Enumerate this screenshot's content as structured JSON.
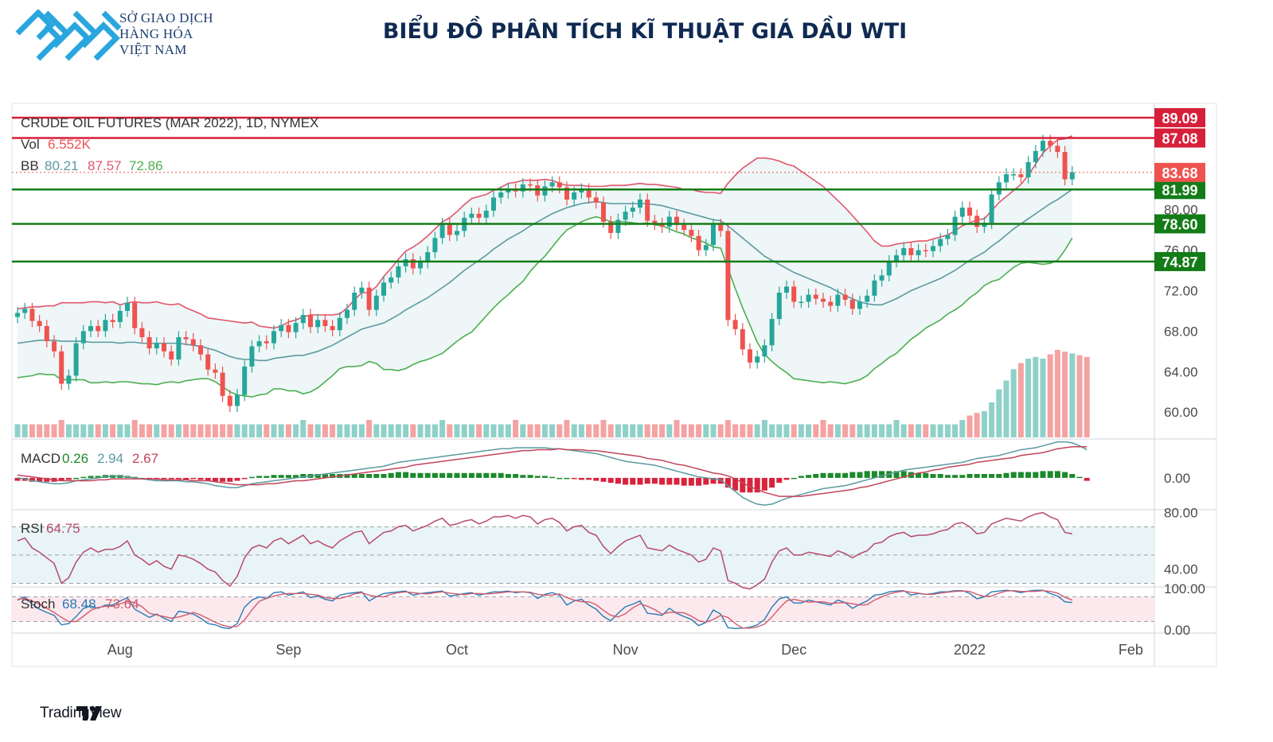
{
  "header": {
    "logo_lines": [
      "SỞ GIAO DỊCH",
      "HÀNG HÓA",
      "VIỆT NAM"
    ],
    "title": "BIỂU ĐỒ PHÂN TÍCH KĨ THUẬT GIÁ DẦU WTI"
  },
  "footer": {
    "brand": "TradingView"
  },
  "colors": {
    "up": "#26a69a",
    "down": "#ef5350",
    "bb_upper": "#e0566b",
    "bb_basis": "#5b9aa0",
    "bb_lower": "#4caf50",
    "resistance": "#d6203a",
    "support": "#137c17",
    "band_fill": "#eef6f7"
  },
  "chart_data": {
    "type": "candlestick",
    "symbol_label": "CRUDE OIL FUTURES (MAR 2022), 1D, NYMEX",
    "currency": "USD",
    "volume_label": "Vol",
    "volume_value": "6.552K",
    "bb_label": "BB",
    "bb_values": [
      "80.21",
      "87.57",
      "72.86"
    ],
    "macd_label": "MACD",
    "macd_values": [
      "0.26",
      "2.94",
      "2.67"
    ],
    "rsi_label": "RSI",
    "rsi_value": "64.75",
    "stoch_label": "Stoch",
    "stoch_values": [
      "68.48",
      "73.64"
    ],
    "price_axis_ticks": [
      "80.00",
      "76.00",
      "72.00",
      "68.00",
      "64.00",
      "60.00"
    ],
    "price_range": [
      57.5,
      90.5
    ],
    "macd_axis_ticks": [
      "0.00"
    ],
    "rsi_axis_ticks": [
      "80.00",
      "40.00"
    ],
    "stoch_axis_ticks": [
      "100.00",
      "0.00"
    ],
    "x_labels": [
      "Aug",
      "Sep",
      "Oct",
      "Nov",
      "Dec",
      "2022",
      "Feb"
    ],
    "x_label_day_index": [
      14,
      37,
      60,
      83,
      106,
      130,
      152
    ],
    "levels": [
      {
        "value": 89.09,
        "label": "89.09",
        "kind": "resistance"
      },
      {
        "value": 87.08,
        "label": "87.08",
        "kind": "resistance"
      },
      {
        "value": 81.99,
        "label": "81.99",
        "kind": "support"
      },
      {
        "value": 78.6,
        "label": "78.60",
        "kind": "support"
      },
      {
        "value": 74.87,
        "label": "74.87",
        "kind": "support"
      }
    ],
    "last_price": {
      "value": 83.68,
      "label": "83.68"
    },
    "closes": [
      69.8,
      70.2,
      69.0,
      68.5,
      67.0,
      66.0,
      62.8,
      63.6,
      66.8,
      68.0,
      68.5,
      68.0,
      69.1,
      68.9,
      70.0,
      70.8,
      68.3,
      67.4,
      66.3,
      66.8,
      66.0,
      65.2,
      67.4,
      67.2,
      66.6,
      65.7,
      64.2,
      63.9,
      61.6,
      60.6,
      61.7,
      64.5,
      66.5,
      67.0,
      66.8,
      68.0,
      68.6,
      67.9,
      68.8,
      69.6,
      68.4,
      69.1,
      68.5,
      68.1,
      69.3,
      70.1,
      71.8,
      72.3,
      70.1,
      71.5,
      72.8,
      73.3,
      74.4,
      75.1,
      74.2,
      74.8,
      75.8,
      77.2,
      78.6,
      77.5,
      77.9,
      79.2,
      79.6,
      79.2,
      79.9,
      81.2,
      81.7,
      82.0,
      81.8,
      82.5,
      82.4,
      81.4,
      82.3,
      82.7,
      82.2,
      81.0,
      81.7,
      82.0,
      81.2,
      80.7,
      78.8,
      77.7,
      79.0,
      79.8,
      80.2,
      81.0,
      78.9,
      78.6,
      78.3,
      79.3,
      78.5,
      78.0,
      77.4,
      76.0,
      76.5,
      78.5,
      77.9,
      69.1,
      68.2,
      66.2,
      64.9,
      65.5,
      66.6,
      69.2,
      71.8,
      72.4,
      70.9,
      70.9,
      71.6,
      71.2,
      70.9,
      70.5,
      71.6,
      71.1,
      70.2,
      70.9,
      71.5,
      73.0,
      73.5,
      74.9,
      75.5,
      76.2,
      75.5,
      76.0,
      75.9,
      76.4,
      77.1,
      77.5,
      79.3,
      80.2,
      79.4,
      78.3,
      78.7,
      81.5,
      82.7,
      83.5,
      83.5,
      83.2,
      84.7,
      85.8,
      86.8,
      86.3,
      85.7,
      83.0,
      83.7
    ],
    "bb_upper": [
      70.2,
      70.3,
      70.4,
      70.4,
      70.5,
      70.5,
      70.8,
      70.8,
      70.8,
      70.8,
      70.9,
      70.9,
      70.8,
      70.9,
      70.6,
      70.8,
      70.9,
      70.8,
      70.8,
      70.9,
      70.7,
      70.6,
      70.7,
      70.3,
      70.0,
      69.7,
      69.3,
      69.2,
      69.1,
      69.0,
      68.9,
      68.8,
      68.9,
      68.5,
      68.4,
      68.3,
      68.5,
      68.9,
      69.1,
      69.4,
      69.6,
      69.6,
      69.6,
      69.6,
      69.7,
      70.3,
      71.1,
      71.8,
      71.8,
      72.4,
      73.4,
      74.2,
      75.1,
      75.9,
      76.3,
      76.8,
      77.4,
      78.1,
      78.8,
      79.2,
      79.8,
      80.5,
      81.1,
      81.3,
      81.5,
      81.9,
      82.2,
      82.6,
      82.7,
      82.9,
      82.9,
      82.9,
      83.0,
      82.9,
      82.6,
      82.4,
      82.4,
      82.4,
      82.3,
      82.3,
      82.3,
      82.4,
      82.4,
      82.4,
      82.5,
      82.6,
      82.5,
      82.5,
      82.4,
      82.3,
      82.2,
      82.0,
      82.0,
      81.8,
      81.7,
      81.7,
      81.6,
      82.6,
      83.4,
      84.1,
      84.6,
      85.1,
      85.1,
      85.0,
      84.8,
      84.5,
      84.3,
      83.8,
      83.3,
      82.8,
      82.3,
      81.6,
      80.9,
      80.2,
      79.4,
      78.6,
      77.8,
      76.9,
      76.4,
      76.4,
      76.6,
      76.7,
      76.8,
      76.9,
      76.9,
      77.1,
      77.3,
      77.5,
      77.9,
      78.4,
      78.7,
      79.0,
      79.1,
      79.9,
      80.7,
      81.3,
      81.9,
      82.5,
      83.4,
      84.5,
      85.6,
      86.3,
      86.9,
      87.0,
      87.3
    ],
    "bb_basis": [
      66.8,
      66.9,
      67.0,
      67.1,
      67.1,
      67.1,
      67.0,
      67.0,
      67.0,
      67.0,
      66.9,
      66.9,
      66.9,
      66.9,
      66.8,
      66.9,
      66.9,
      66.8,
      66.8,
      66.8,
      66.8,
      66.8,
      66.8,
      66.7,
      66.6,
      66.5,
      66.3,
      66.1,
      65.8,
      65.5,
      65.3,
      65.2,
      65.2,
      65.1,
      65.1,
      65.3,
      65.4,
      65.5,
      65.6,
      65.6,
      65.8,
      66.0,
      66.3,
      66.6,
      67.0,
      67.4,
      67.8,
      68.2,
      68.4,
      68.6,
      68.8,
      69.2,
      69.6,
      70.1,
      70.5,
      70.9,
      71.3,
      71.8,
      72.3,
      72.8,
      73.4,
      74.0,
      74.5,
      75.0,
      75.5,
      76.1,
      76.6,
      77.1,
      77.5,
      77.9,
      78.4,
      78.8,
      79.2,
      79.6,
      79.9,
      80.2,
      80.4,
      80.6,
      80.7,
      80.8,
      80.7,
      80.6,
      80.6,
      80.6,
      80.6,
      80.6,
      80.6,
      80.5,
      80.4,
      80.2,
      80.0,
      79.8,
      79.6,
      79.4,
      79.2,
      79.0,
      78.9,
      78.4,
      77.8,
      77.2,
      76.6,
      76.0,
      75.4,
      75.0,
      74.6,
      74.2,
      73.8,
      73.5,
      73.2,
      72.9,
      72.6,
      72.3,
      71.9,
      71.5,
      71.2,
      70.9,
      70.7,
      70.6,
      70.6,
      70.9,
      71.2,
      71.6,
      72.0,
      72.3,
      72.6,
      72.9,
      73.2,
      73.6,
      74.0,
      74.5,
      75.0,
      75.4,
      75.8,
      76.4,
      76.9,
      77.5,
      78.1,
      78.6,
      79.1,
      79.6,
      80.1,
      80.6,
      81.0,
      81.5,
      82.0
    ],
    "bb_lower": [
      63.4,
      63.5,
      63.6,
      63.8,
      63.7,
      63.7,
      63.2,
      63.2,
      63.2,
      63.2,
      62.9,
      62.9,
      63.0,
      62.9,
      63.0,
      63.0,
      62.9,
      62.8,
      62.8,
      62.7,
      62.9,
      63.0,
      62.9,
      63.1,
      63.2,
      63.3,
      63.3,
      63.0,
      62.5,
      62.0,
      61.7,
      61.6,
      61.5,
      61.7,
      61.8,
      62.3,
      62.3,
      62.1,
      62.1,
      61.8,
      62.0,
      62.4,
      63.0,
      63.6,
      64.3,
      64.5,
      64.5,
      64.6,
      65.0,
      64.8,
      64.2,
      64.2,
      64.1,
      64.3,
      64.7,
      65.0,
      65.2,
      65.5,
      65.8,
      66.4,
      67.0,
      67.5,
      67.9,
      68.7,
      69.5,
      70.3,
      71.0,
      71.6,
      72.3,
      72.9,
      73.9,
      74.7,
      75.4,
      76.3,
      77.2,
      78.0,
      78.4,
      78.8,
      79.1,
      79.3,
      79.1,
      78.8,
      78.8,
      78.8,
      78.7,
      78.6,
      78.7,
      78.5,
      78.4,
      78.1,
      77.8,
      77.6,
      77.2,
      77.0,
      76.7,
      76.3,
      76.2,
      74.2,
      72.2,
      70.3,
      68.6,
      66.9,
      65.7,
      65.0,
      64.4,
      63.9,
      63.3,
      63.2,
      63.1,
      63.0,
      62.9,
      63.0,
      62.9,
      62.8,
      63.0,
      63.2,
      63.6,
      64.3,
      64.8,
      65.4,
      65.8,
      66.5,
      67.2,
      67.7,
      68.3,
      68.7,
      69.1,
      69.7,
      70.1,
      70.6,
      71.3,
      71.8,
      72.5,
      72.9,
      73.1,
      73.7,
      74.3,
      74.7,
      74.8,
      74.7,
      74.6,
      74.7,
      75.0,
      76.0,
      77.2
    ],
    "volume_relative": [
      0.15,
      0.15,
      0.15,
      0.15,
      0.15,
      0.15,
      0.2,
      0.15,
      0.15,
      0.15,
      0.15,
      0.15,
      0.15,
      0.15,
      0.15,
      0.15,
      0.2,
      0.15,
      0.15,
      0.15,
      0.15,
      0.15,
      0.15,
      0.15,
      0.15,
      0.15,
      0.15,
      0.15,
      0.15,
      0.15,
      0.15,
      0.15,
      0.15,
      0.15,
      0.15,
      0.15,
      0.15,
      0.15,
      0.15,
      0.2,
      0.15,
      0.15,
      0.15,
      0.15,
      0.15,
      0.15,
      0.15,
      0.15,
      0.2,
      0.15,
      0.15,
      0.15,
      0.15,
      0.15,
      0.15,
      0.15,
      0.15,
      0.15,
      0.2,
      0.15,
      0.15,
      0.15,
      0.15,
      0.15,
      0.15,
      0.15,
      0.15,
      0.15,
      0.2,
      0.15,
      0.15,
      0.15,
      0.15,
      0.15,
      0.15,
      0.2,
      0.15,
      0.15,
      0.15,
      0.15,
      0.2,
      0.15,
      0.15,
      0.15,
      0.15,
      0.15,
      0.15,
      0.15,
      0.15,
      0.15,
      0.2,
      0.15,
      0.15,
      0.15,
      0.15,
      0.15,
      0.15,
      0.2,
      0.15,
      0.15,
      0.15,
      0.15,
      0.2,
      0.15,
      0.15,
      0.15,
      0.15,
      0.15,
      0.15,
      0.15,
      0.2,
      0.15,
      0.15,
      0.15,
      0.15,
      0.15,
      0.15,
      0.15,
      0.15,
      0.15,
      0.2,
      0.15,
      0.15,
      0.15,
      0.15,
      0.15,
      0.15,
      0.15,
      0.15,
      0.2,
      0.25,
      0.28,
      0.3,
      0.4,
      0.55,
      0.65,
      0.78,
      0.85,
      0.9,
      0.92,
      0.9,
      0.95,
      1.0,
      0.98,
      0.96,
      0.94,
      0.92
    ],
    "macd": [
      0.0,
      -0.1,
      -0.3,
      -0.4,
      -0.5,
      -0.6,
      -0.6,
      -0.5,
      -0.3,
      -0.2,
      -0.1,
      0.0,
      0.1,
      0.2,
      0.2,
      0.1,
      0.0,
      -0.1,
      -0.2,
      -0.3,
      -0.3,
      -0.3,
      -0.3,
      -0.4,
      -0.4,
      -0.5,
      -0.6,
      -0.8,
      -0.9,
      -1.0,
      -1.0,
      -0.8,
      -0.6,
      -0.5,
      -0.4,
      -0.3,
      -0.2,
      -0.1,
      0.0,
      0.1,
      0.2,
      0.3,
      0.4,
      0.5,
      0.6,
      0.7,
      0.8,
      0.9,
      1.0,
      1.1,
      1.2,
      1.4,
      1.6,
      1.7,
      1.8,
      1.9,
      2.0,
      2.1,
      2.2,
      2.3,
      2.4,
      2.5,
      2.6,
      2.7,
      2.8,
      2.9,
      3.0,
      3.0,
      3.1,
      3.1,
      3.1,
      3.1,
      3.1,
      3.0,
      3.0,
      2.9,
      2.8,
      2.7,
      2.6,
      2.5,
      2.3,
      2.1,
      1.9,
      1.7,
      1.6,
      1.5,
      1.4,
      1.3,
      1.1,
      0.9,
      0.7,
      0.5,
      0.3,
      0.1,
      0.0,
      -0.1,
      -0.2,
      -0.8,
      -1.4,
      -2.0,
      -2.4,
      -2.7,
      -2.8,
      -2.7,
      -2.4,
      -2.1,
      -1.9,
      -1.7,
      -1.5,
      -1.3,
      -1.1,
      -1.0,
      -0.9,
      -0.8,
      -0.6,
      -0.4,
      -0.2,
      0.0,
      0.2,
      0.4,
      0.6,
      0.8,
      0.9,
      1.0,
      1.1,
      1.2,
      1.3,
      1.4,
      1.5,
      1.6,
      1.8,
      2.0,
      2.1,
      2.2,
      2.3,
      2.5,
      2.7,
      2.9,
      3.0,
      3.1,
      3.3,
      3.5,
      3.7,
      3.7,
      3.6,
      3.3,
      2.9
    ],
    "macd_signal": [
      0.3,
      0.2,
      0.1,
      0.0,
      -0.1,
      -0.2,
      -0.3,
      -0.3,
      -0.3,
      -0.3,
      -0.3,
      -0.2,
      -0.2,
      -0.1,
      -0.1,
      -0.1,
      -0.1,
      -0.1,
      -0.1,
      -0.1,
      -0.2,
      -0.2,
      -0.2,
      -0.2,
      -0.3,
      -0.3,
      -0.3,
      -0.4,
      -0.5,
      -0.6,
      -0.7,
      -0.7,
      -0.7,
      -0.7,
      -0.6,
      -0.6,
      -0.5,
      -0.4,
      -0.3,
      -0.3,
      -0.2,
      -0.1,
      0.0,
      0.1,
      0.2,
      0.3,
      0.4,
      0.5,
      0.6,
      0.7,
      0.8,
      0.9,
      1.0,
      1.1,
      1.3,
      1.4,
      1.5,
      1.6,
      1.7,
      1.8,
      1.9,
      2.0,
      2.1,
      2.2,
      2.3,
      2.4,
      2.5,
      2.6,
      2.7,
      2.8,
      2.8,
      2.9,
      2.9,
      2.9,
      3.0,
      2.9,
      2.9,
      2.9,
      2.8,
      2.8,
      2.7,
      2.6,
      2.5,
      2.4,
      2.3,
      2.2,
      2.0,
      1.9,
      1.8,
      1.6,
      1.4,
      1.3,
      1.1,
      0.9,
      0.7,
      0.5,
      0.4,
      0.2,
      -0.1,
      -0.5,
      -0.9,
      -1.2,
      -1.5,
      -1.7,
      -1.9,
      -1.9,
      -1.9,
      -1.9,
      -1.8,
      -1.7,
      -1.6,
      -1.5,
      -1.4,
      -1.3,
      -1.2,
      -1.0,
      -0.9,
      -0.7,
      -0.5,
      -0.3,
      -0.1,
      0.1,
      0.3,
      0.5,
      0.6,
      0.8,
      0.9,
      1.1,
      1.2,
      1.3,
      1.4,
      1.6,
      1.7,
      1.8,
      1.9,
      2.0,
      2.1,
      2.3,
      2.4,
      2.5,
      2.6,
      2.8,
      3.0,
      3.1,
      3.2,
      3.2,
      3.2
    ],
    "rsi": [
      60,
      62,
      55,
      52,
      48,
      44,
      30,
      34,
      45,
      52,
      55,
      52,
      54,
      54,
      56,
      60,
      50,
      47,
      43,
      46,
      42,
      40,
      50,
      49,
      47,
      44,
      40,
      38,
      32,
      28,
      35,
      48,
      55,
      57,
      55,
      60,
      62,
      58,
      61,
      64,
      58,
      60,
      57,
      55,
      60,
      63,
      66,
      67,
      58,
      62,
      66,
      67,
      70,
      71,
      67,
      69,
      71,
      74,
      76,
      71,
      72,
      74,
      75,
      72,
      74,
      77,
      77,
      78,
      76,
      78,
      77,
      72,
      75,
      76,
      73,
      67,
      70,
      71,
      66,
      64,
      56,
      51,
      56,
      60,
      62,
      64,
      55,
      54,
      53,
      57,
      54,
      52,
      50,
      45,
      47,
      55,
      53,
      32,
      30,
      27,
      26,
      29,
      33,
      45,
      53,
      55,
      50,
      50,
      52,
      51,
      50,
      49,
      53,
      51,
      48,
      51,
      53,
      58,
      59,
      63,
      65,
      66,
      63,
      64,
      64,
      65,
      67,
      68,
      72,
      73,
      70,
      65,
      66,
      72,
      74,
      76,
      75,
      74,
      77,
      79,
      80,
      77,
      75,
      66,
      65
    ],
    "stoch_k": [
      72,
      80,
      62,
      50,
      42,
      35,
      12,
      15,
      32,
      52,
      58,
      52,
      60,
      60,
      70,
      78,
      50,
      40,
      30,
      38,
      28,
      20,
      45,
      42,
      38,
      28,
      15,
      12,
      5,
      3,
      15,
      55,
      72,
      80,
      76,
      90,
      92,
      84,
      88,
      92,
      78,
      82,
      74,
      70,
      84,
      88,
      90,
      92,
      70,
      80,
      88,
      90,
      92,
      94,
      84,
      88,
      90,
      92,
      94,
      82,
      84,
      88,
      90,
      84,
      88,
      92,
      92,
      94,
      90,
      92,
      90,
      76,
      86,
      90,
      84,
      60,
      70,
      74,
      60,
      50,
      32,
      22,
      40,
      56,
      62,
      70,
      40,
      38,
      35,
      52,
      40,
      32,
      25,
      10,
      18,
      48,
      38,
      5,
      3,
      4,
      6,
      12,
      25,
      55,
      75,
      80,
      65,
      65,
      72,
      68,
      64,
      60,
      72,
      66,
      52,
      62,
      70,
      84,
      86,
      92,
      94,
      95,
      84,
      88,
      86,
      88,
      92,
      92,
      95,
      95,
      88,
      75,
      80,
      92,
      94,
      96,
      94,
      90,
      94,
      96,
      96,
      88,
      82,
      68,
      66
    ],
    "stoch_d": [
      74,
      76,
      70,
      62,
      52,
      42,
      30,
      20,
      20,
      33,
      47,
      54,
      57,
      57,
      63,
      69,
      66,
      56,
      40,
      36,
      32,
      28,
      31,
      36,
      42,
      36,
      27,
      18,
      11,
      7,
      8,
      24,
      48,
      69,
      76,
      82,
      86,
      88,
      88,
      88,
      86,
      84,
      78,
      76,
      76,
      81,
      87,
      90,
      84,
      81,
      80,
      86,
      90,
      92,
      90,
      88,
      87,
      90,
      92,
      89,
      87,
      85,
      88,
      88,
      87,
      88,
      90,
      92,
      92,
      92,
      91,
      86,
      84,
      84,
      87,
      78,
      72,
      68,
      68,
      61,
      47,
      35,
      31,
      39,
      53,
      63,
      57,
      49,
      38,
      42,
      42,
      41,
      33,
      22,
      18,
      25,
      35,
      30,
      15,
      4,
      4,
      7,
      14,
      31,
      52,
      70,
      74,
      70,
      67,
      68,
      68,
      64,
      65,
      66,
      63,
      60,
      61,
      72,
      80,
      87,
      91,
      94,
      91,
      89,
      86,
      86,
      89,
      91,
      93,
      94,
      93,
      86,
      81,
      82,
      89,
      94,
      95,
      93,
      93,
      93,
      95,
      93,
      89,
      79,
      72
    ]
  }
}
